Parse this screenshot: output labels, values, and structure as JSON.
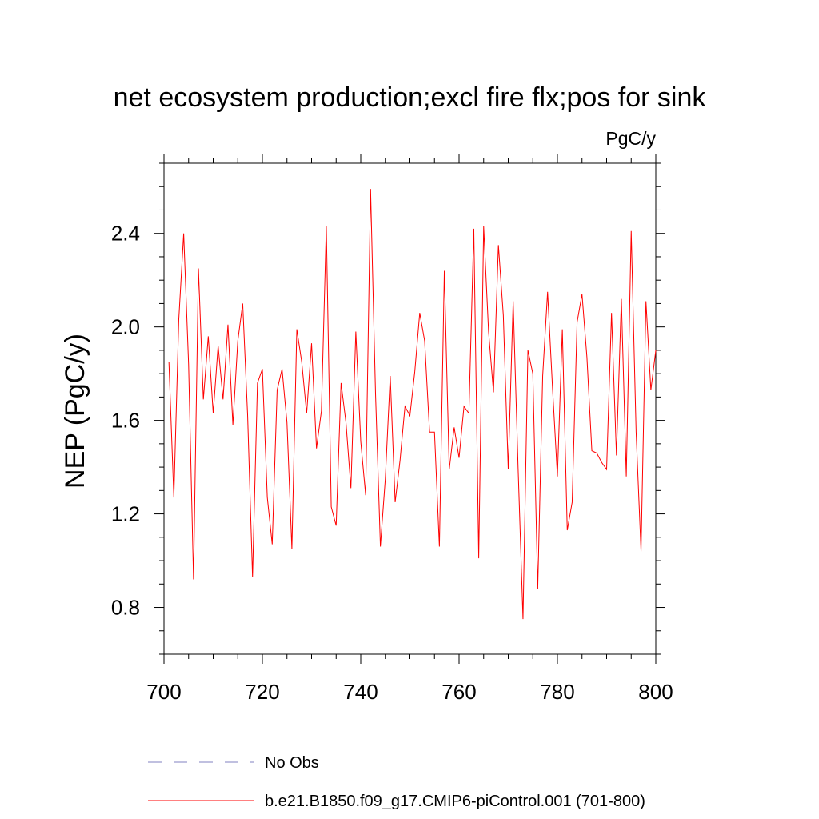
{
  "chart_data": {
    "type": "line",
    "title": "net ecosystem production;excl fire flx;pos for sink",
    "units": "PgC/y",
    "xlabel": "",
    "ylabel": "NEP  (PgC/y)",
    "xlim": [
      700,
      800
    ],
    "ylim": [
      0.6,
      2.7
    ],
    "xticks": [
      700,
      720,
      740,
      760,
      780,
      800
    ],
    "xtick_labels": [
      "700",
      "720",
      "740",
      "760",
      "780",
      "800"
    ],
    "yticks": [
      0.8,
      1.2,
      1.6,
      2.0,
      2.4
    ],
    "ytick_labels": [
      "0.8",
      "1.2",
      "1.6",
      "2.0",
      "2.4"
    ],
    "grid": false,
    "legend_position": "bottom",
    "series": [
      {
        "name": "No Obs",
        "color": "#8080c0",
        "dash": "dashed",
        "x": [],
        "values": []
      },
      {
        "name": "b.e21.B1850.f09_g17.CMIP6-piControl.001 (701-800)",
        "color": "#ff0000",
        "dash": "solid",
        "x": [
          701,
          702,
          703,
          704,
          705,
          706,
          707,
          708,
          709,
          710,
          711,
          712,
          713,
          714,
          715,
          716,
          717,
          718,
          719,
          720,
          721,
          722,
          723,
          724,
          725,
          726,
          727,
          728,
          729,
          730,
          731,
          732,
          733,
          734,
          735,
          736,
          737,
          738,
          739,
          740,
          741,
          742,
          743,
          744,
          745,
          746,
          747,
          748,
          749,
          750,
          751,
          752,
          753,
          754,
          755,
          756,
          757,
          758,
          759,
          760,
          761,
          762,
          763,
          764,
          765,
          766,
          767,
          768,
          769,
          770,
          771,
          772,
          773,
          774,
          775,
          776,
          777,
          778,
          779,
          780,
          781,
          782,
          783,
          784,
          785,
          786,
          787,
          788,
          789,
          790,
          791,
          792,
          793,
          794,
          795,
          796,
          797,
          798,
          799,
          800
        ],
        "values": [
          1.85,
          1.27,
          2.03,
          2.4,
          1.84,
          0.92,
          2.25,
          1.69,
          1.96,
          1.63,
          1.92,
          1.69,
          2.01,
          1.58,
          1.94,
          2.1,
          1.62,
          0.93,
          1.76,
          1.82,
          1.27,
          1.07,
          1.73,
          1.82,
          1.59,
          1.05,
          1.99,
          1.85,
          1.63,
          1.93,
          1.48,
          1.64,
          2.43,
          1.23,
          1.15,
          1.76,
          1.59,
          1.31,
          1.98,
          1.51,
          1.28,
          2.59,
          1.72,
          1.06,
          1.35,
          1.79,
          1.25,
          1.43,
          1.66,
          1.62,
          1.81,
          2.06,
          1.94,
          1.55,
          1.55,
          1.06,
          2.24,
          1.39,
          1.57,
          1.44,
          1.66,
          1.63,
          2.42,
          1.01,
          2.43,
          1.98,
          1.72,
          2.35,
          2.05,
          1.39,
          2.11,
          1.4,
          0.75,
          1.9,
          1.8,
          0.88,
          1.79,
          2.15,
          1.74,
          1.36,
          1.99,
          1.13,
          1.25,
          2.02,
          2.14,
          1.87,
          1.47,
          1.46,
          1.42,
          1.39,
          2.06,
          1.45,
          2.12,
          1.36,
          2.41,
          1.55,
          1.04,
          2.11,
          1.73,
          1.9
        ]
      }
    ]
  }
}
